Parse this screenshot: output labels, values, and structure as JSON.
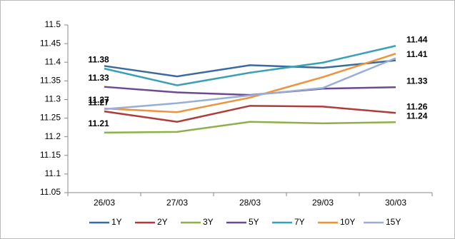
{
  "chart_data": {
    "type": "line",
    "categories": [
      "26/03",
      "27/03",
      "28/03",
      "29/03",
      "30/03"
    ],
    "ylim": [
      11.05,
      11.5
    ],
    "yticks": [
      11.05,
      11.1,
      11.15,
      11.2,
      11.25,
      11.3,
      11.35,
      11.4,
      11.45,
      11.5
    ],
    "grid": false,
    "legend": "bottom",
    "series": [
      {
        "name": "1Y",
        "color": "#3a6aa0",
        "values": [
          11.39,
          11.362,
          11.392,
          11.385,
          11.405
        ],
        "value_labels": [
          null,
          null,
          null,
          null,
          "11.41"
        ]
      },
      {
        "name": "2Y",
        "color": "#b03c3a",
        "values": [
          11.268,
          11.24,
          11.283,
          11.281,
          11.264
        ],
        "value_labels": [
          "11.27",
          null,
          null,
          null,
          "11.26"
        ]
      },
      {
        "name": "3Y",
        "color": "#8db04a",
        "values": [
          11.211,
          11.213,
          11.24,
          11.236,
          11.239
        ],
        "value_labels": [
          "11.21",
          null,
          null,
          null,
          "11.24"
        ]
      },
      {
        "name": "5Y",
        "color": "#6e4a93",
        "values": [
          11.334,
          11.319,
          11.312,
          11.329,
          11.333
        ],
        "value_labels": [
          "11.33",
          null,
          null,
          null,
          "11.33"
        ]
      },
      {
        "name": "7Y",
        "color": "#3aa0b8",
        "values": [
          11.383,
          11.338,
          11.372,
          11.399,
          11.444
        ],
        "value_labels": [
          "11.38",
          null,
          null,
          null,
          "11.44"
        ]
      },
      {
        "name": "10Y",
        "color": "#f0923a",
        "values": [
          11.276,
          11.266,
          11.305,
          11.36,
          11.423
        ]
      },
      {
        "name": "15Y",
        "color": "#98aed8",
        "values": [
          11.274,
          11.29,
          11.311,
          11.331,
          11.411
        ],
        "value_labels": [
          "11.27",
          null,
          null,
          null,
          null
        ]
      }
    ]
  }
}
